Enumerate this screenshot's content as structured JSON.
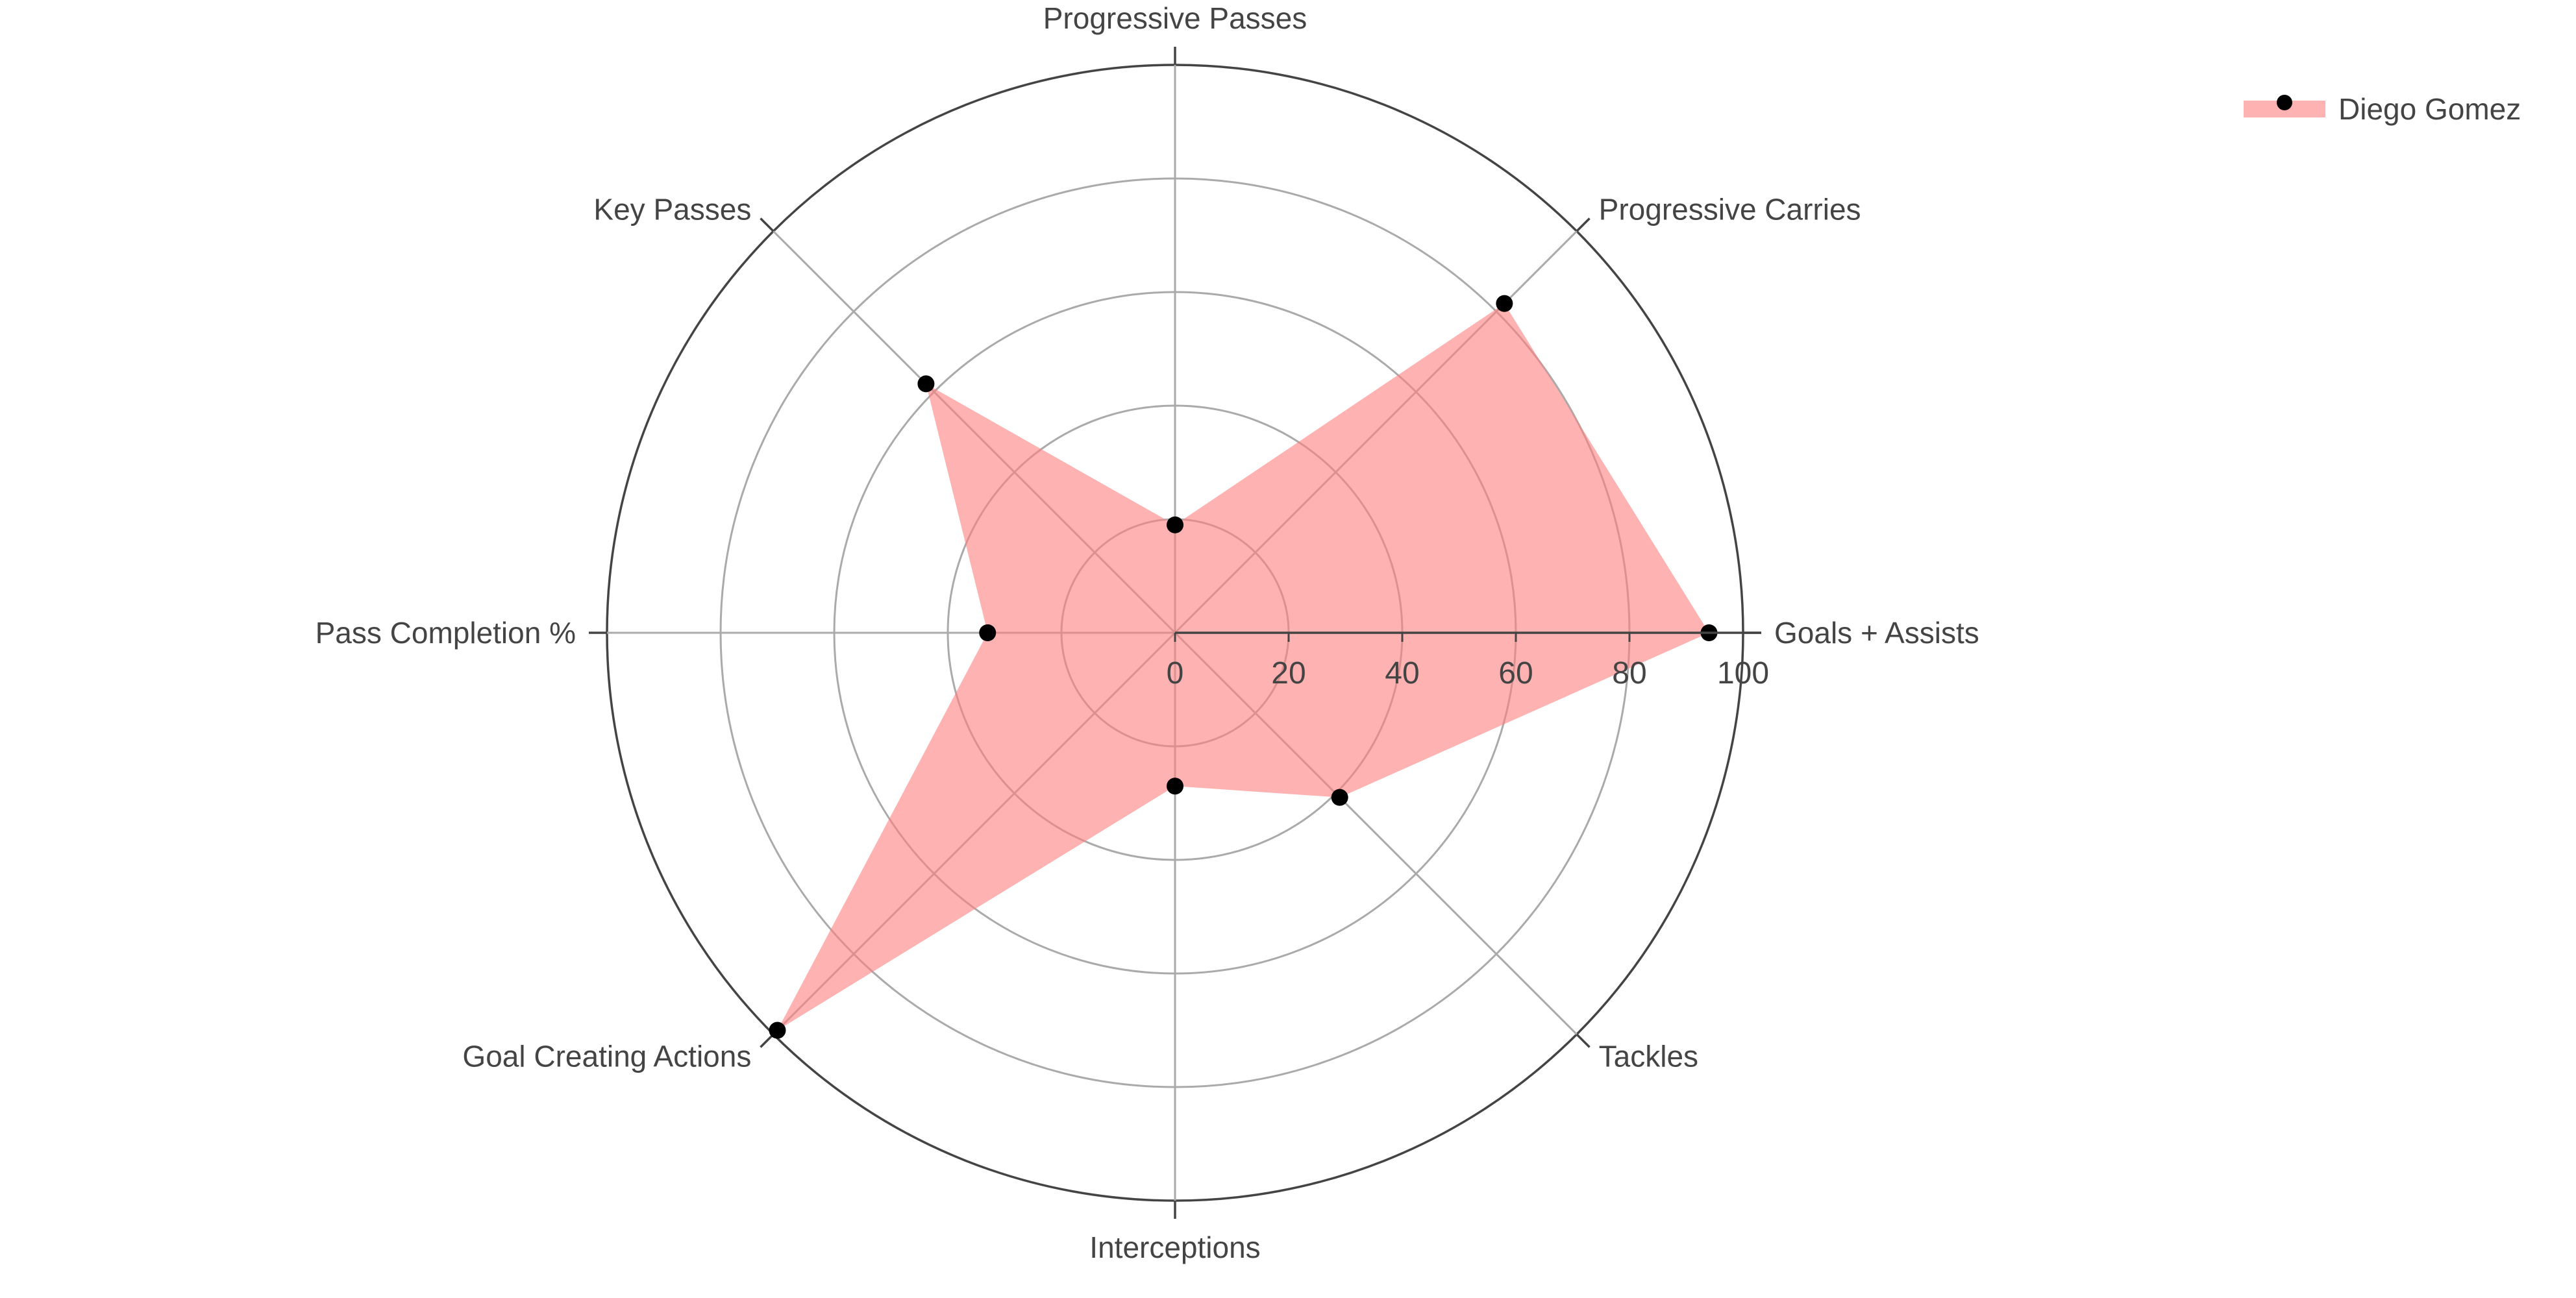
{
  "chart_data": {
    "type": "radar",
    "axes": [
      "Goals + Assists",
      "Progressive Carries",
      "Progressive Passes",
      "Key Passes",
      "Pass Completion %",
      "Goal Creating Actions",
      "Interceptions",
      "Tackles"
    ],
    "series": [
      {
        "name": "Diego Gomez",
        "values": [
          94,
          82,
          19,
          62,
          33,
          99,
          27,
          41
        ]
      }
    ],
    "radial_range": [
      0,
      100
    ],
    "radial_ticks": [
      "0",
      "20",
      "40",
      "60",
      "80",
      "100"
    ],
    "legend_position": "top-right",
    "grid": true,
    "colors": {
      "fill": "#ff7f7f",
      "fill_opacity": 0.6,
      "marker": "#000000",
      "grid": "#aaaaaa",
      "outer_ring": "#444444",
      "text": "#444444"
    }
  }
}
